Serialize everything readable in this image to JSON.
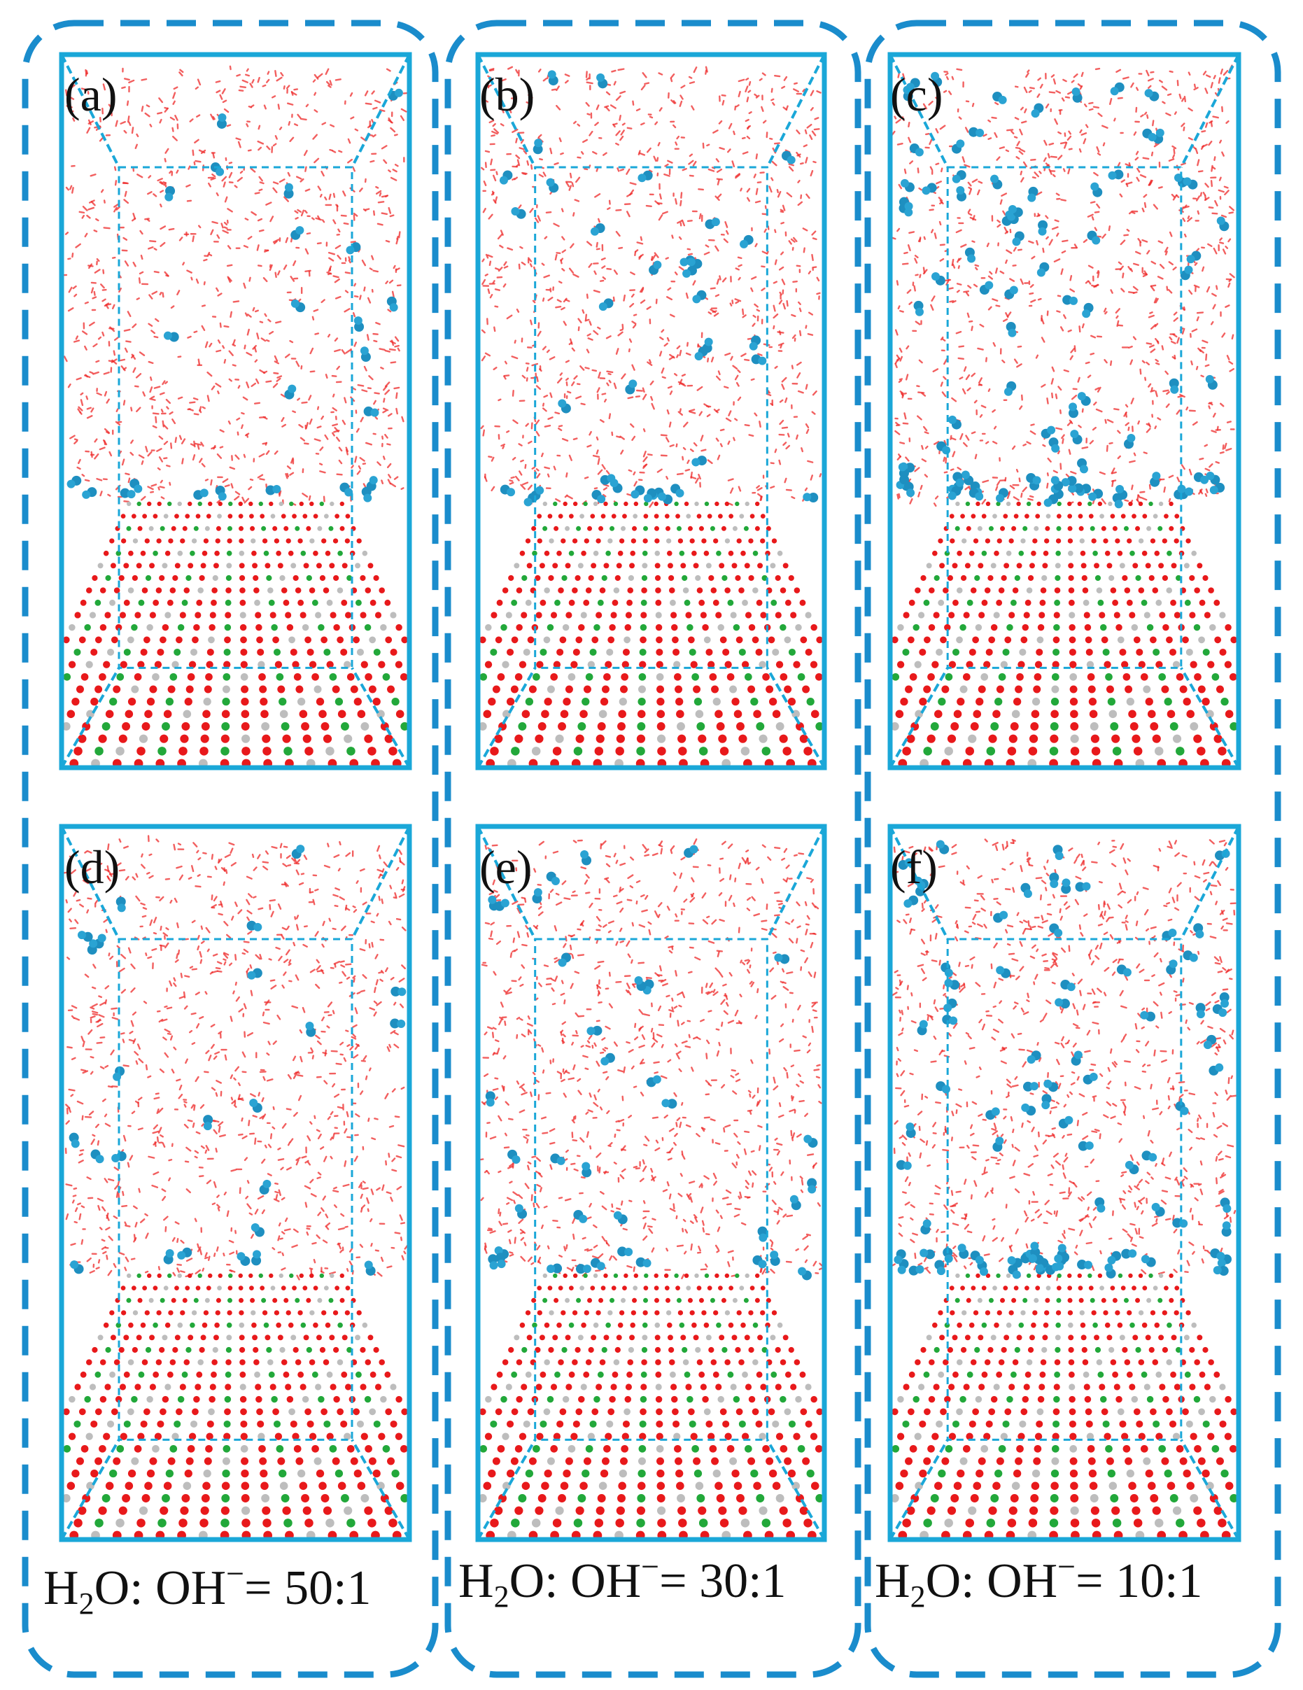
{
  "panels": [
    {
      "label": "(a)",
      "density": 4
    },
    {
      "label": "(b)",
      "density": 6
    },
    {
      "label": "(c)",
      "density": 14
    },
    {
      "label": "(d)",
      "density": 4
    },
    {
      "label": "(e)",
      "density": 6
    },
    {
      "label": "(f)",
      "density": 14
    }
  ],
  "ratios": [
    {
      "prefix": "H",
      "sub": "2",
      "rest": "O: OH",
      "sup": "−",
      "tail": "= 50:1"
    },
    {
      "prefix": "H",
      "sub": "2",
      "rest": "O: OH",
      "sup": "−",
      "tail": "= 30:1"
    },
    {
      "prefix": "H",
      "sub": "2",
      "rest": "O: OH",
      "sup": "−",
      "tail": "= 10:1"
    }
  ],
  "colors": {
    "box": "#1aa7d8",
    "group_border": "#1a8ccc",
    "water": "#ee2a2a",
    "hydroxide": "#1e8fc0",
    "lattice_red": "#e8191b",
    "lattice_green": "#22a83a",
    "lattice_grey": "#bdbdbd"
  }
}
